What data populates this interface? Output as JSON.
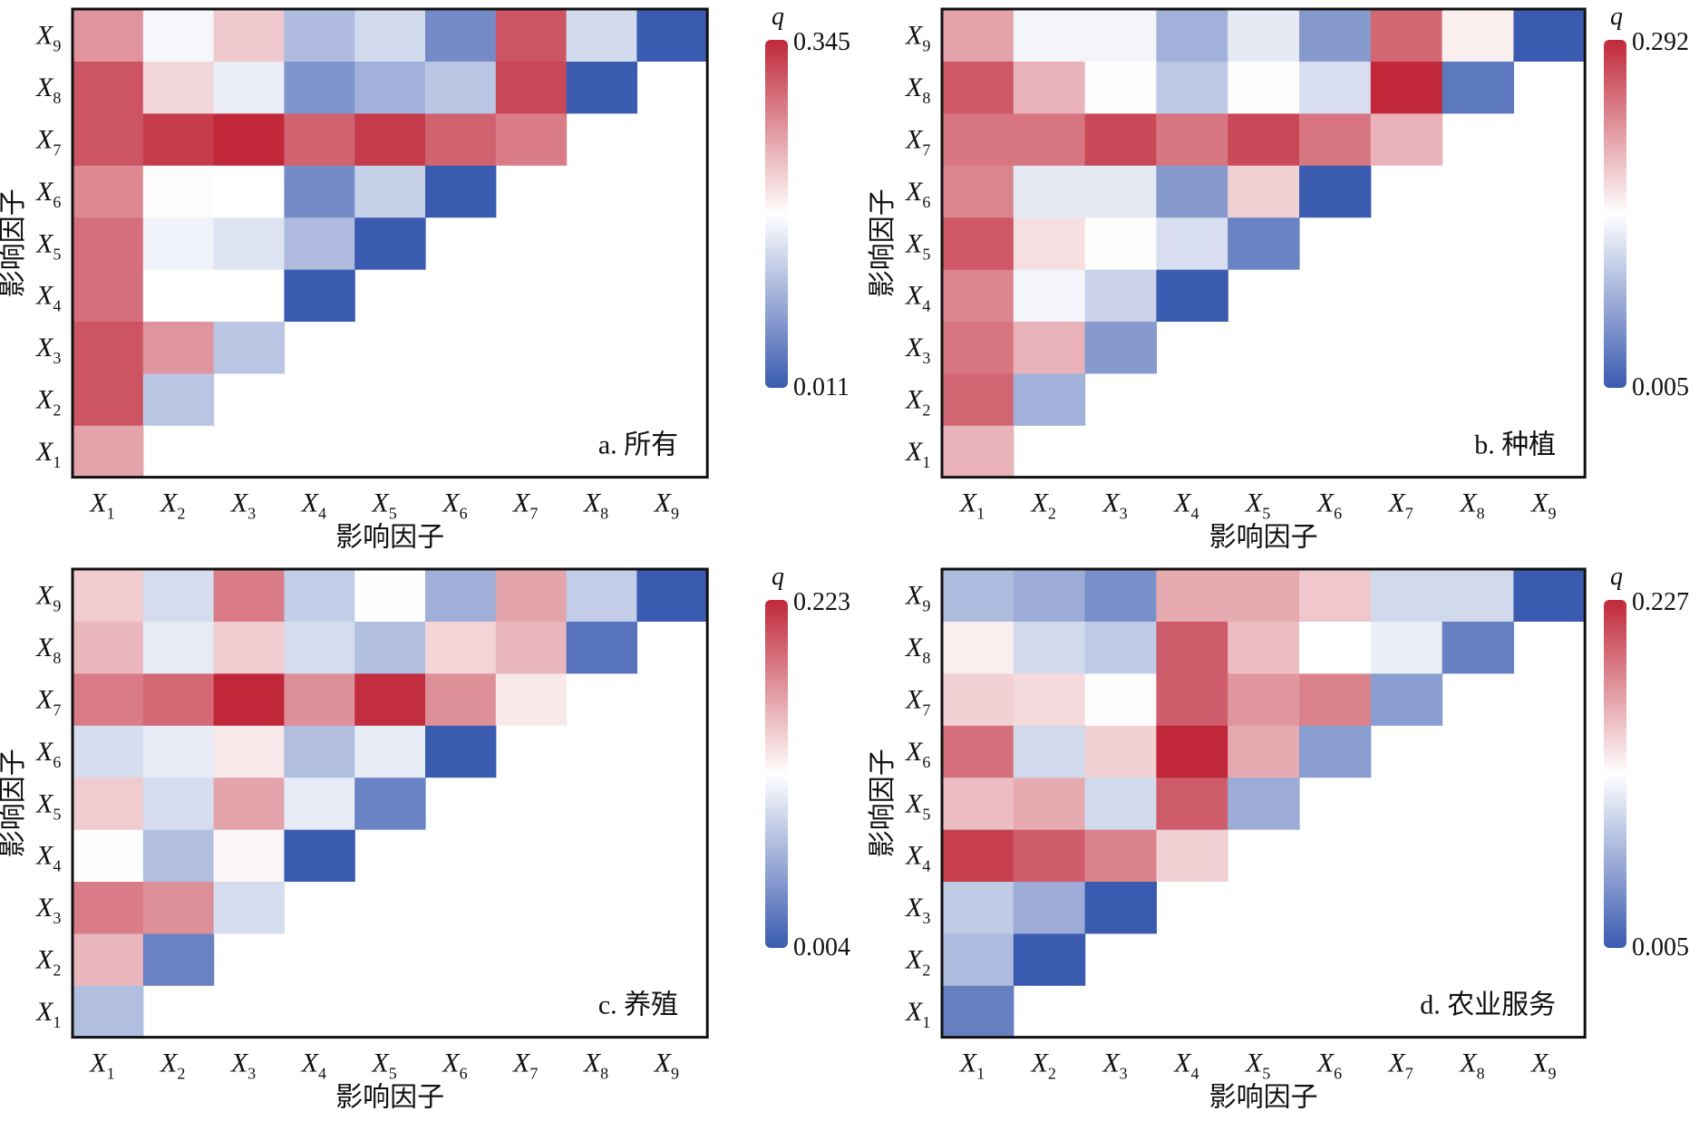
{
  "colors": {
    "low": "#3a5bb0",
    "mid": "#ffffff",
    "high": "#c0283a"
  },
  "chart_data": [
    {
      "type": "heatmap",
      "panel_label": "a. 所有",
      "xlabel": "影响因子",
      "ylabel": "影响因子",
      "factors": [
        "X1",
        "X2",
        "X3",
        "X4",
        "X5",
        "X6",
        "X7",
        "X8",
        "X9"
      ],
      "colorbar_label": "q",
      "vmin": 0.011,
      "vmax": 0.345,
      "vmin_label": "0.011",
      "vmax_label": "0.345",
      "rows": [
        [
          0.25
        ],
        [
          0.31,
          0.12
        ],
        [
          0.31,
          0.26,
          0.12
        ],
        [
          0.29,
          0.178,
          0.178,
          0.011
        ],
        [
          0.29,
          0.165,
          0.15,
          0.11,
          0.011
        ],
        [
          0.27,
          0.181,
          0.178,
          0.06,
          0.13,
          0.011
        ],
        [
          0.31,
          0.33,
          0.345,
          0.3,
          0.33,
          0.3,
          0.28
        ],
        [
          0.31,
          0.21,
          0.16,
          0.07,
          0.1,
          0.12,
          0.32,
          0.011
        ],
        [
          0.26,
          0.17,
          0.22,
          0.11,
          0.14,
          0.06,
          0.31,
          0.14,
          0.011
        ]
      ]
    },
    {
      "type": "heatmap",
      "panel_label": "b. 种植",
      "xlabel": "影响因子",
      "ylabel": "影响因子",
      "factors": [
        "X1",
        "X2",
        "X3",
        "X4",
        "X5",
        "X6",
        "X7",
        "X8",
        "X9"
      ],
      "colorbar_label": "q",
      "vmin": 0.005,
      "vmax": 0.292,
      "vmin_label": "0.005",
      "vmax_label": "0.292",
      "rows": [
        [
          0.2
        ],
        [
          0.25,
          0.08
        ],
        [
          0.24,
          0.2,
          0.06
        ],
        [
          0.23,
          0.14,
          0.11,
          0.005
        ],
        [
          0.26,
          0.17,
          0.15,
          0.12,
          0.04
        ],
        [
          0.23,
          0.13,
          0.13,
          0.06,
          0.18,
          0.005
        ],
        [
          0.24,
          0.24,
          0.27,
          0.24,
          0.27,
          0.24,
          0.2
        ],
        [
          0.26,
          0.2,
          0.15,
          0.1,
          0.15,
          0.12,
          0.292,
          0.03
        ],
        [
          0.21,
          0.14,
          0.14,
          0.08,
          0.13,
          0.06,
          0.25,
          0.16,
          0.005
        ]
      ]
    },
    {
      "type": "heatmap",
      "panel_label": "c. 养殖",
      "xlabel": "影响因子",
      "ylabel": "影响因子",
      "factors": [
        "X1",
        "X2",
        "X3",
        "X4",
        "X5",
        "X6",
        "X7",
        "X8",
        "X9"
      ],
      "colorbar_label": "q",
      "vmin": 0.004,
      "vmax": 0.223,
      "vmin_label": "0.004",
      "vmax_label": "0.223",
      "rows": [
        [
          0.07
        ],
        [
          0.15,
          0.03
        ],
        [
          0.18,
          0.17,
          0.09
        ],
        [
          0.114,
          0.07,
          0.118,
          0.004
        ],
        [
          0.14,
          0.09,
          0.16,
          0.1,
          0.03
        ],
        [
          0.09,
          0.1,
          0.125,
          0.07,
          0.1,
          0.004
        ],
        [
          0.18,
          0.19,
          0.223,
          0.17,
          0.22,
          0.17,
          0.125
        ],
        [
          0.15,
          0.1,
          0.14,
          0.09,
          0.07,
          0.135,
          0.15,
          0.02
        ],
        [
          0.14,
          0.09,
          0.18,
          0.08,
          0.114,
          0.06,
          0.16,
          0.08,
          0.004
        ]
      ]
    },
    {
      "type": "heatmap",
      "panel_label": "d. 农业服务",
      "xlabel": "影响因子",
      "ylabel": "影响因子",
      "factors": [
        "X1",
        "X2",
        "X3",
        "X4",
        "X5",
        "X6",
        "X7",
        "X8",
        "X9"
      ],
      "colorbar_label": "q",
      "vmin": 0.005,
      "vmax": 0.227,
      "vmin_label": "0.005",
      "vmax_label": "0.227",
      "rows": [
        [
          0.03
        ],
        [
          0.07,
          0.005
        ],
        [
          0.08,
          0.06,
          0.005
        ],
        [
          0.215,
          0.2,
          0.18,
          0.14
        ],
        [
          0.15,
          0.16,
          0.09,
          0.2,
          0.06
        ],
        [
          0.19,
          0.09,
          0.14,
          0.227,
          0.16,
          0.05
        ],
        [
          0.14,
          0.135,
          0.117,
          0.2,
          0.17,
          0.18,
          0.05
        ],
        [
          0.125,
          0.09,
          0.08,
          0.2,
          0.15,
          0.116,
          0.105,
          0.03
        ],
        [
          0.07,
          0.06,
          0.04,
          0.16,
          0.16,
          0.145,
          0.09,
          0.09,
          0.005
        ]
      ]
    }
  ]
}
